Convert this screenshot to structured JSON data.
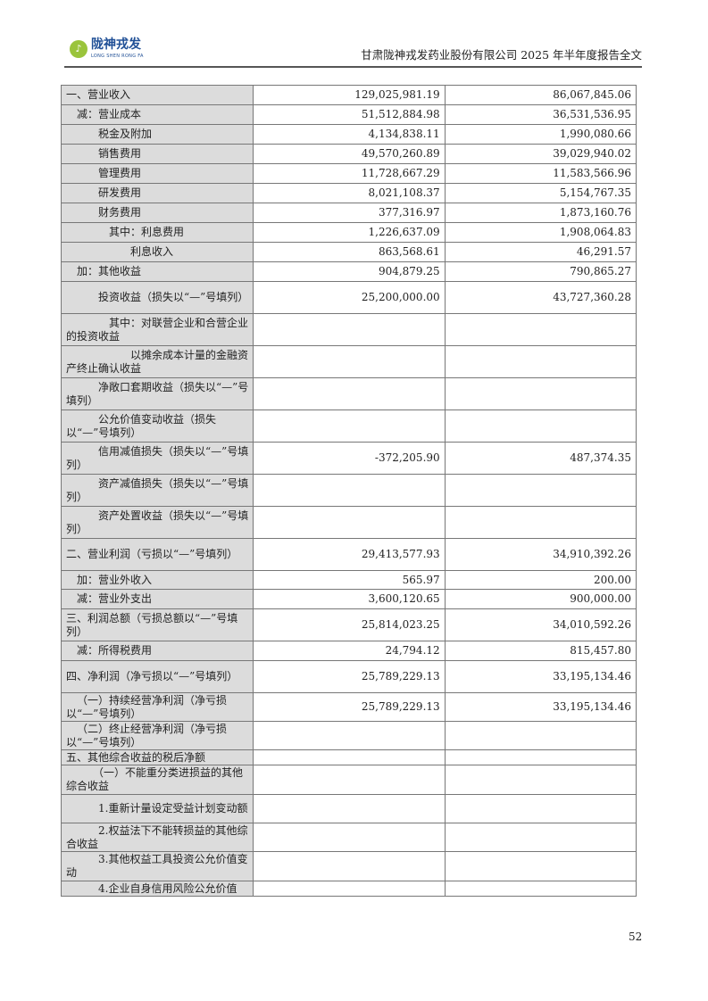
{
  "header": {
    "logo_cn": "陇神戎发",
    "logo_en": "LONG SHEN RONG FA",
    "document_title": "甘肃陇神戎发药业股份有限公司 2025 年半年度报告全文"
  },
  "table": {
    "rows": [
      {
        "label": "一、营业收入",
        "current": "129,025,981.19",
        "previous": "86,067,845.06"
      },
      {
        "label": "减：营业成本",
        "current": "51,512,884.98",
        "previous": "36,531,536.95"
      },
      {
        "label": "税金及附加",
        "current": "4,134,838.11",
        "previous": "1,990,080.66"
      },
      {
        "label": "销售费用",
        "current": "49,570,260.89",
        "previous": "39,029,940.02"
      },
      {
        "label": "管理费用",
        "current": "11,728,667.29",
        "previous": "11,583,566.96"
      },
      {
        "label": "研发费用",
        "current": "8,021,108.37",
        "previous": "5,154,767.35"
      },
      {
        "label": "财务费用",
        "current": "377,316.97",
        "previous": "1,873,160.76"
      },
      {
        "label": "其中：利息费用",
        "current": "1,226,637.09",
        "previous": "1,908,064.83"
      },
      {
        "label": "利息收入",
        "current": "863,568.61",
        "previous": "46,291.57"
      },
      {
        "label": "加：其他收益",
        "current": "904,879.25",
        "previous": "790,865.27"
      },
      {
        "label": "投资收益（损失以“—”号填列）",
        "current": "25,200,000.00",
        "previous": "43,727,360.28"
      },
      {
        "label": "其中：对联营企业和合营企业的投资收益",
        "current": "",
        "previous": ""
      },
      {
        "label": "以摊余成本计量的金融资产终止确认收益",
        "current": "",
        "previous": ""
      },
      {
        "label": "净敞口套期收益（损失以“—”号填列）",
        "current": "",
        "previous": ""
      },
      {
        "label": "公允价值变动收益（损失以“—”号填列）",
        "current": "",
        "previous": ""
      },
      {
        "label": "信用减值损失（损失以“—”号填列）",
        "current": "-372,205.90",
        "previous": "487,374.35"
      },
      {
        "label": "资产减值损失（损失以“—”号填列）",
        "current": "",
        "previous": ""
      },
      {
        "label": "资产处置收益（损失以“—”号填列）",
        "current": "",
        "previous": ""
      },
      {
        "label": "二、营业利润（亏损以“—”号填列）",
        "current": "29,413,577.93",
        "previous": "34,910,392.26"
      },
      {
        "label": "加：营业外收入",
        "current": "565.97",
        "previous": "200.00"
      },
      {
        "label": "减：营业外支出",
        "current": "3,600,120.65",
        "previous": "900,000.00"
      },
      {
        "label": "三、利润总额（亏损总额以“—”号填列）",
        "current": "25,814,023.25",
        "previous": "34,010,592.26"
      },
      {
        "label": "减：所得税费用",
        "current": "24,794.12",
        "previous": "815,457.80"
      },
      {
        "label": "四、净利润（净亏损以“—”号填列）",
        "current": "25,789,229.13",
        "previous": "33,195,134.46"
      },
      {
        "label": "（一）持续经营净利润（净亏损以“—”号填列）",
        "current": "25,789,229.13",
        "previous": "33,195,134.46"
      },
      {
        "label": "（二）终止经营净利润（净亏损以“—”号填列）",
        "current": "",
        "previous": ""
      },
      {
        "label": "五、其他综合收益的税后净额",
        "current": "",
        "previous": ""
      },
      {
        "label": "（一）不能重分类进损益的其他综合收益",
        "current": "",
        "previous": ""
      },
      {
        "label": "1.重新计量设定受益计划变动额",
        "current": "",
        "previous": ""
      },
      {
        "label": "2.权益法下不能转损益的其他综合收益",
        "current": "",
        "previous": ""
      },
      {
        "label": "3.其他权益工具投资公允价值变动",
        "current": "",
        "previous": ""
      },
      {
        "label": "4.企业自身信用风险公允价值",
        "current": "",
        "previous": ""
      }
    ]
  },
  "footer": {
    "page_number": "52"
  }
}
